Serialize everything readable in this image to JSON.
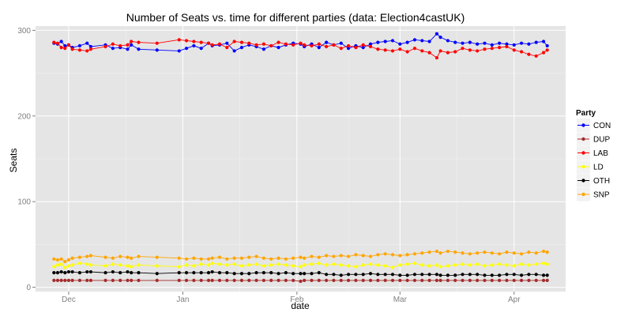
{
  "chart_data": {
    "type": "line",
    "title": "Number of Seats vs. time for different parties (data: Election4castUK)",
    "xlabel": "date",
    "ylabel": "Seats",
    "xlim": [
      "2014-11-22",
      "2015-04-15"
    ],
    "ylim": [
      -5,
      305
    ],
    "x_ticks": [
      {
        "date": "2014-12-01",
        "label": "Dec"
      },
      {
        "date": "2015-01-01",
        "label": "Jan"
      },
      {
        "date": "2015-02-01",
        "label": "Feb"
      },
      {
        "date": "2015-03-01",
        "label": "Mar"
      },
      {
        "date": "2015-04-01",
        "label": "Apr"
      }
    ],
    "y_ticks": [
      0,
      100,
      200,
      300
    ],
    "grid": true,
    "legend": {
      "title": "Party",
      "position": "right"
    },
    "x": [
      "2014-11-27",
      "2014-11-28",
      "2014-11-29",
      "2014-11-30",
      "2014-12-01",
      "2014-12-02",
      "2014-12-04",
      "2014-12-06",
      "2014-12-07",
      "2014-12-11",
      "2014-12-13",
      "2014-12-15",
      "2014-12-17",
      "2014-12-18",
      "2014-12-20",
      "2014-12-25",
      "2014-12-31",
      "2015-01-02",
      "2015-01-04",
      "2015-01-06",
      "2015-01-08",
      "2015-01-09",
      "2015-01-11",
      "2015-01-13",
      "2015-01-15",
      "2015-01-17",
      "2015-01-19",
      "2015-01-21",
      "2015-01-23",
      "2015-01-25",
      "2015-01-27",
      "2015-01-29",
      "2015-01-31",
      "2015-02-02",
      "2015-02-03",
      "2015-02-05",
      "2015-02-07",
      "2015-02-09",
      "2015-02-11",
      "2015-02-13",
      "2015-02-15",
      "2015-02-17",
      "2015-02-19",
      "2015-02-21",
      "2015-02-23",
      "2015-02-25",
      "2015-02-27",
      "2015-03-01",
      "2015-03-03",
      "2015-03-05",
      "2015-03-07",
      "2015-03-09",
      "2015-03-11",
      "2015-03-12",
      "2015-03-14",
      "2015-03-16",
      "2015-03-18",
      "2015-03-20",
      "2015-03-22",
      "2015-03-24",
      "2015-03-26",
      "2015-03-28",
      "2015-03-30",
      "2015-04-01",
      "2015-04-03",
      "2015-04-05",
      "2015-04-07",
      "2015-04-09",
      "2015-04-10"
    ],
    "series": [
      {
        "name": "CON",
        "color": "#0000ff",
        "values": [
          285,
          284,
          287,
          282,
          283,
          280,
          282,
          285,
          281,
          283,
          279,
          280,
          278,
          283,
          278,
          277,
          276,
          279,
          282,
          279,
          285,
          282,
          283,
          285,
          276,
          280,
          283,
          281,
          278,
          282,
          280,
          283,
          285,
          284,
          281,
          284,
          280,
          286,
          283,
          285,
          279,
          282,
          280,
          284,
          286,
          287,
          288,
          284,
          286,
          289,
          288,
          287,
          296,
          292,
          288,
          286,
          285,
          286,
          284,
          285,
          283,
          285,
          284,
          283,
          285,
          284,
          286,
          287,
          282
        ]
      },
      {
        "name": "DUP",
        "color": "#a52a2a",
        "values": [
          8,
          8,
          8,
          8,
          8,
          8,
          8,
          8,
          8,
          8,
          8,
          8,
          8,
          8,
          8,
          8,
          8,
          8,
          8,
          8,
          8,
          8,
          8,
          8,
          8,
          8,
          8,
          8,
          8,
          8,
          8,
          8,
          8,
          7,
          8,
          8,
          8,
          8,
          8,
          8,
          8,
          8,
          8,
          8,
          8,
          8,
          8,
          8,
          8,
          8,
          8,
          8,
          8,
          8,
          8,
          8,
          8,
          8,
          8,
          8,
          8,
          8,
          8,
          8,
          8,
          8,
          8,
          8,
          8
        ]
      },
      {
        "name": "LAB",
        "color": "#ff0000",
        "values": [
          286,
          285,
          280,
          279,
          283,
          278,
          277,
          276,
          278,
          281,
          284,
          282,
          283,
          287,
          286,
          285,
          289,
          288,
          287,
          286,
          285,
          283,
          284,
          280,
          287,
          286,
          285,
          283,
          284,
          282,
          286,
          284,
          283,
          285,
          283,
          282,
          284,
          281,
          283,
          279,
          282,
          280,
          283,
          281,
          278,
          277,
          276,
          278,
          275,
          279,
          276,
          274,
          268,
          276,
          274,
          275,
          279,
          277,
          276,
          278,
          279,
          280,
          281,
          277,
          275,
          272,
          270,
          274,
          277
        ]
      },
      {
        "name": "LD",
        "color": "#ffff00",
        "values": [
          24,
          26,
          27,
          23,
          25,
          26,
          28,
          27,
          26,
          25,
          27,
          26,
          25,
          24,
          26,
          25,
          24,
          26,
          25,
          27,
          26,
          28,
          27,
          26,
          27,
          25,
          26,
          27,
          25,
          26,
          27,
          26,
          25,
          24,
          26,
          27,
          28,
          26,
          27,
          26,
          25,
          24,
          26,
          27,
          26,
          25,
          23,
          26,
          27,
          28,
          26,
          25,
          26,
          24,
          25,
          26,
          27,
          26,
          27,
          25,
          26,
          27,
          26,
          25,
          27,
          26,
          27,
          28,
          27
        ]
      },
      {
        "name": "OTH",
        "color": "#000000",
        "values": [
          17,
          17,
          18,
          17,
          18,
          18,
          17,
          18,
          18,
          17,
          18,
          17,
          18,
          17,
          17,
          16,
          17,
          17,
          17,
          17,
          17,
          18,
          17,
          17,
          16,
          16,
          16,
          17,
          17,
          17,
          16,
          17,
          16,
          16,
          16,
          16,
          17,
          15,
          15,
          14,
          15,
          15,
          15,
          16,
          15,
          15,
          15,
          14,
          14,
          15,
          15,
          15,
          15,
          14,
          14,
          14,
          15,
          15,
          15,
          14,
          14,
          14,
          15,
          15,
          14,
          15,
          15,
          14,
          14
        ]
      },
      {
        "name": "SNP",
        "color": "#ffa500",
        "values": [
          33,
          32,
          33,
          30,
          32,
          34,
          35,
          36,
          37,
          35,
          34,
          36,
          35,
          34,
          36,
          35,
          34,
          33,
          34,
          33,
          33,
          34,
          35,
          33,
          34,
          34,
          35,
          36,
          34,
          33,
          34,
          33,
          34,
          35,
          34,
          36,
          35,
          37,
          36,
          37,
          36,
          38,
          37,
          36,
          38,
          39,
          38,
          37,
          38,
          39,
          40,
          41,
          42,
          40,
          42,
          41,
          40,
          39,
          40,
          41,
          40,
          39,
          41,
          40,
          39,
          41,
          40,
          42,
          41
        ]
      }
    ]
  }
}
